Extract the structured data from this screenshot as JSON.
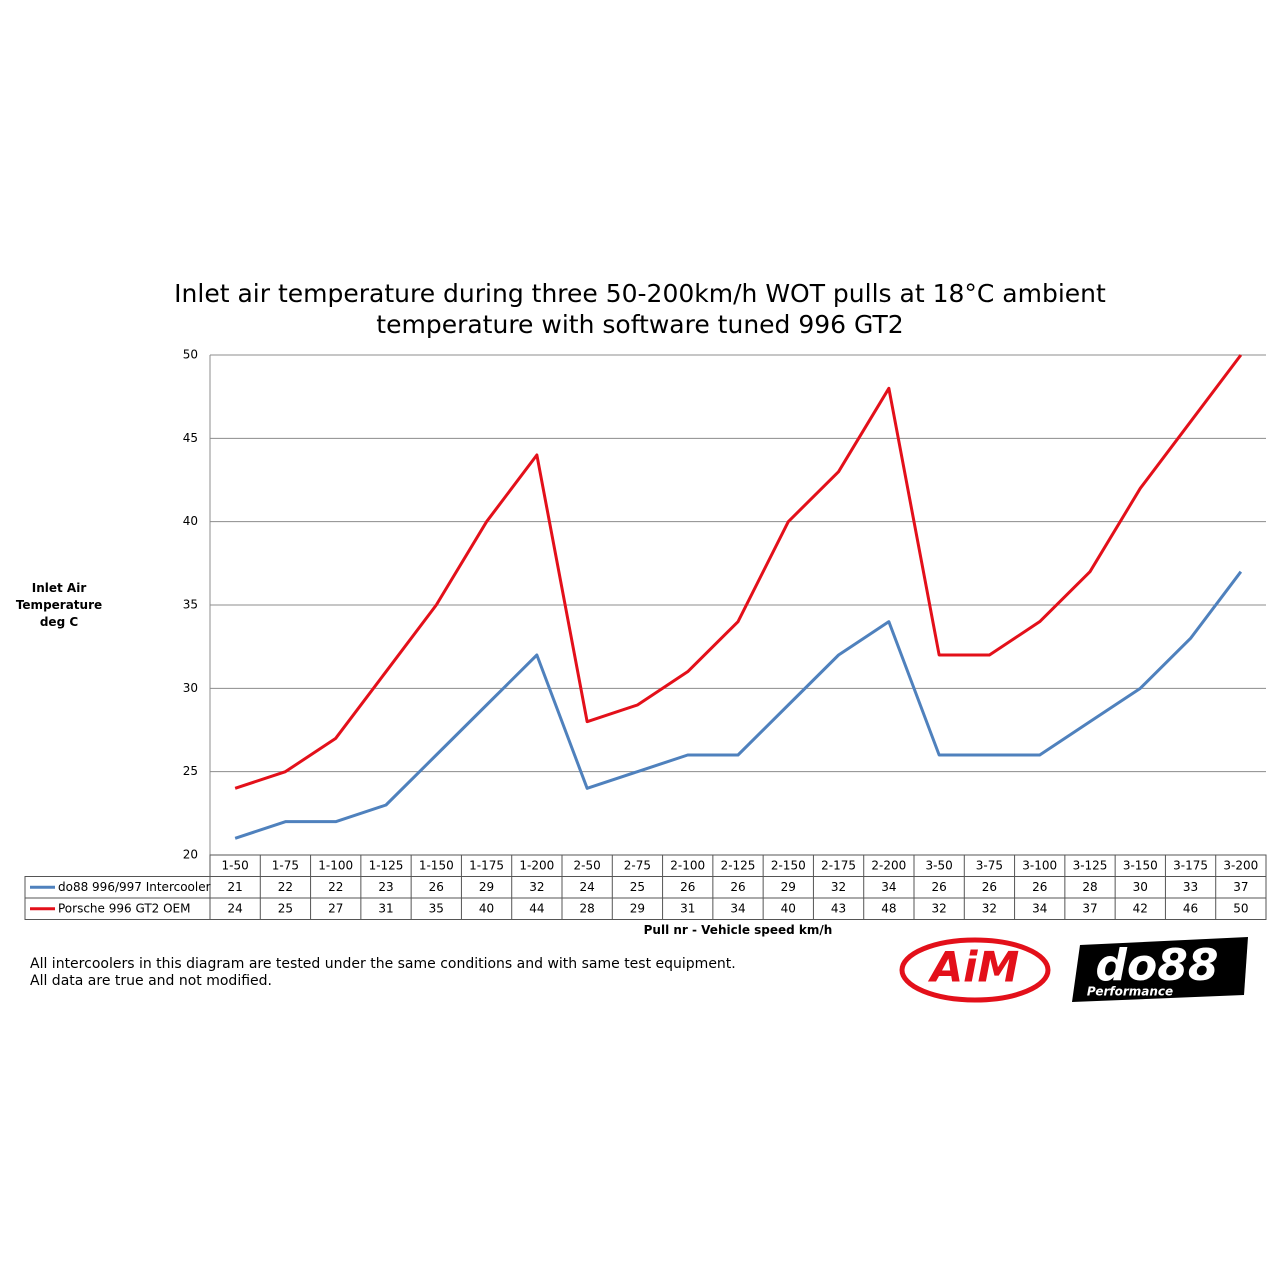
{
  "chart_data": {
    "type": "line",
    "title": "Inlet air temperature during three 50-200km/h WOT pulls at 18°C ambient temperature with software tuned 996 GT2",
    "y_label": "Inlet Air Temperature deg C",
    "x_label": "Pull nr - Vehicle speed km/h",
    "categories": [
      "1-50",
      "1-75",
      "1-100",
      "1-125",
      "1-150",
      "1-175",
      "1-200",
      "2-50",
      "2-75",
      "2-100",
      "2-125",
      "2-150",
      "2-175",
      "2-200",
      "3-50",
      "3-75",
      "3-100",
      "3-125",
      "3-150",
      "3-175",
      "3-200"
    ],
    "series": [
      {
        "name": "do88 996/997 Intercooler",
        "color": "#4f81bd",
        "values": [
          21,
          22,
          22,
          23,
          26,
          29,
          32,
          24,
          25,
          26,
          26,
          29,
          32,
          34,
          26,
          26,
          26,
          28,
          30,
          33,
          37
        ]
      },
      {
        "name": "Porsche 996 GT2 OEM",
        "color": "#e3101a",
        "values": [
          24,
          25,
          27,
          31,
          35,
          40,
          44,
          28,
          29,
          31,
          34,
          40,
          43,
          48,
          32,
          32,
          34,
          37,
          42,
          46,
          50
        ]
      }
    ],
    "ylim": [
      20,
      50
    ],
    "yticks": [
      20,
      25,
      30,
      35,
      40,
      45,
      50
    ],
    "grid": true
  },
  "footnote": [
    "All intercoolers in this diagram are tested under the same conditions and with same test equipment.",
    "All data are true and not modified."
  ],
  "logos": {
    "aim": "AiM",
    "do88": "do88",
    "do88_sub": "Performance"
  }
}
